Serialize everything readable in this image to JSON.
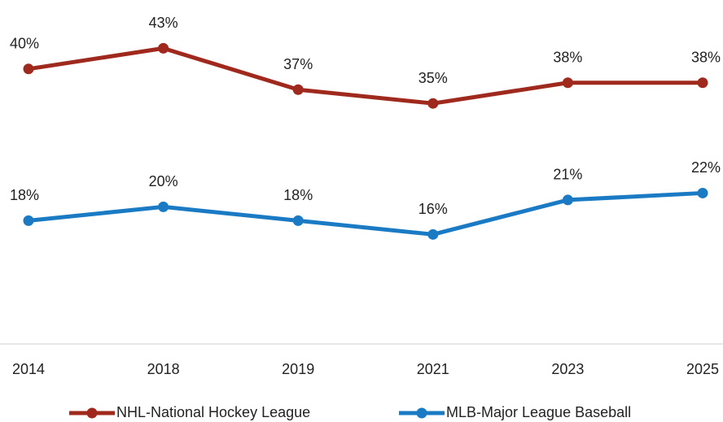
{
  "chart_data": {
    "type": "line",
    "categories": [
      "2014",
      "2018",
      "2019",
      "2021",
      "2023",
      "2025"
    ],
    "series": [
      {
        "name": "NHL-National Hockey League",
        "color": "#a0291e",
        "values": [
          40,
          43,
          37,
          35,
          38,
          38
        ],
        "value_labels": [
          "40%",
          "43%",
          "37%",
          "35%",
          "38%",
          "38%"
        ]
      },
      {
        "name": "MLB-Major League Baseball",
        "color": "#1a7bc4",
        "values": [
          18,
          20,
          18,
          16,
          21,
          22
        ],
        "value_labels": [
          "18%",
          "20%",
          "18%",
          "16%",
          "21%",
          "22%"
        ]
      }
    ],
    "ylim": [
      0,
      50
    ],
    "legend": "bottom",
    "grid": false
  }
}
